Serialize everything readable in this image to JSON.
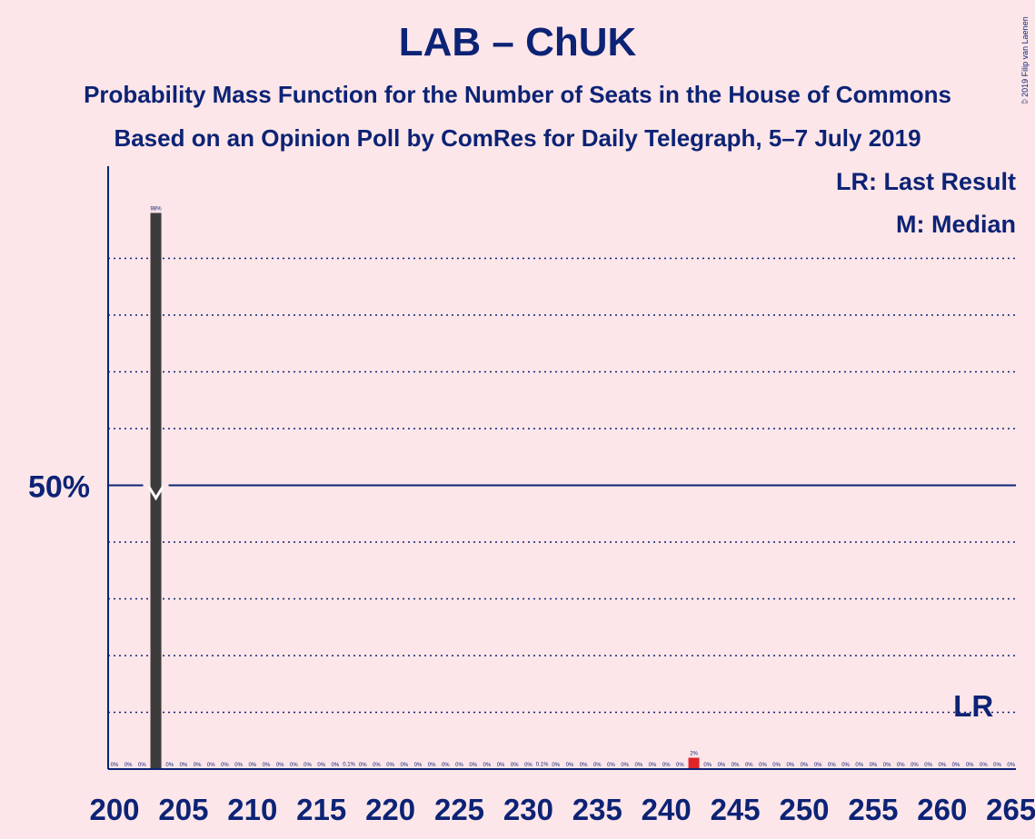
{
  "title": "LAB – ChUK",
  "subtitle_1": "Probability Mass Function for the Number of Seats in the House of Commons",
  "subtitle_2": "Based on an Opinion Poll by ComRes for Daily Telegraph, 5–7 July 2019",
  "legend": {
    "last_result": "LR: Last Result",
    "median": "M: Median"
  },
  "copyright": "© 2019 Filip van Laenen",
  "colors": {
    "background": "#fde6e9",
    "text": "#0c2375",
    "bar": "#3c3c3c",
    "last_result_bar": "#e0242a"
  },
  "chart_data": {
    "type": "bar",
    "xlim": [
      200,
      265
    ],
    "ylim": [
      0,
      100
    ],
    "x_ticks": [
      200,
      205,
      210,
      215,
      220,
      225,
      230,
      235,
      240,
      245,
      250,
      255,
      260,
      265
    ],
    "x_tick_labels": [
      "200",
      "205",
      "210",
      "215",
      "220",
      "225",
      "230",
      "235",
      "240",
      "245",
      "250",
      "255",
      "260",
      "265"
    ],
    "y_gridlines": [
      10,
      20,
      30,
      40,
      60,
      70,
      80,
      90
    ],
    "y_major": {
      "value": 50,
      "label": "50%"
    },
    "median": 203,
    "median_label": "M",
    "last_result": 262,
    "last_result_label": "LR",
    "bars": [
      {
        "seat": 200,
        "value": 0,
        "label": "0%"
      },
      {
        "seat": 201,
        "value": 0,
        "label": "0%"
      },
      {
        "seat": 202,
        "value": 0,
        "label": "0%"
      },
      {
        "seat": 203,
        "value": 98,
        "label": "98%"
      },
      {
        "seat": 204,
        "value": 0,
        "label": "0%"
      },
      {
        "seat": 205,
        "value": 0,
        "label": "0%"
      },
      {
        "seat": 206,
        "value": 0,
        "label": "0%"
      },
      {
        "seat": 207,
        "value": 0,
        "label": "0%"
      },
      {
        "seat": 208,
        "value": 0,
        "label": "0%"
      },
      {
        "seat": 209,
        "value": 0,
        "label": "0%"
      },
      {
        "seat": 210,
        "value": 0,
        "label": "0%"
      },
      {
        "seat": 211,
        "value": 0,
        "label": "0%"
      },
      {
        "seat": 212,
        "value": 0,
        "label": "0%"
      },
      {
        "seat": 213,
        "value": 0,
        "label": "0%"
      },
      {
        "seat": 214,
        "value": 0,
        "label": "0%"
      },
      {
        "seat": 215,
        "value": 0,
        "label": "0%"
      },
      {
        "seat": 216,
        "value": 0,
        "label": "0%"
      },
      {
        "seat": 217,
        "value": 0.1,
        "label": "0.1%"
      },
      {
        "seat": 218,
        "value": 0,
        "label": "0%"
      },
      {
        "seat": 219,
        "value": 0,
        "label": "0%"
      },
      {
        "seat": 220,
        "value": 0,
        "label": "0%"
      },
      {
        "seat": 221,
        "value": 0,
        "label": "0%"
      },
      {
        "seat": 222,
        "value": 0,
        "label": "0%"
      },
      {
        "seat": 223,
        "value": 0,
        "label": "0%"
      },
      {
        "seat": 224,
        "value": 0,
        "label": "0%"
      },
      {
        "seat": 225,
        "value": 0,
        "label": "0%"
      },
      {
        "seat": 226,
        "value": 0,
        "label": "0%"
      },
      {
        "seat": 227,
        "value": 0,
        "label": "0%"
      },
      {
        "seat": 228,
        "value": 0,
        "label": "0%"
      },
      {
        "seat": 229,
        "value": 0,
        "label": "0%"
      },
      {
        "seat": 230,
        "value": 0,
        "label": "0%"
      },
      {
        "seat": 231,
        "value": 0.1,
        "label": "0.1%"
      },
      {
        "seat": 232,
        "value": 0,
        "label": "0%"
      },
      {
        "seat": 233,
        "value": 0,
        "label": "0%"
      },
      {
        "seat": 234,
        "value": 0,
        "label": "0%"
      },
      {
        "seat": 235,
        "value": 0,
        "label": "0%"
      },
      {
        "seat": 236,
        "value": 0,
        "label": "0%"
      },
      {
        "seat": 237,
        "value": 0,
        "label": "0%"
      },
      {
        "seat": 238,
        "value": 0,
        "label": "0%"
      },
      {
        "seat": 239,
        "value": 0,
        "label": "0%"
      },
      {
        "seat": 240,
        "value": 0,
        "label": "0%"
      },
      {
        "seat": 241,
        "value": 0,
        "label": "0%"
      },
      {
        "seat": 242,
        "value": 2,
        "label": "2%"
      },
      {
        "seat": 243,
        "value": 0,
        "label": "0%"
      },
      {
        "seat": 244,
        "value": 0,
        "label": "0%"
      },
      {
        "seat": 245,
        "value": 0,
        "label": "0%"
      },
      {
        "seat": 246,
        "value": 0,
        "label": "0%"
      },
      {
        "seat": 247,
        "value": 0,
        "label": "0%"
      },
      {
        "seat": 248,
        "value": 0,
        "label": "0%"
      },
      {
        "seat": 249,
        "value": 0,
        "label": "0%"
      },
      {
        "seat": 250,
        "value": 0,
        "label": "0%"
      },
      {
        "seat": 251,
        "value": 0,
        "label": "0%"
      },
      {
        "seat": 252,
        "value": 0,
        "label": "0%"
      },
      {
        "seat": 253,
        "value": 0,
        "label": "0%"
      },
      {
        "seat": 254,
        "value": 0,
        "label": "0%"
      },
      {
        "seat": 255,
        "value": 0,
        "label": "0%"
      },
      {
        "seat": 256,
        "value": 0,
        "label": "0%"
      },
      {
        "seat": 257,
        "value": 0,
        "label": "0%"
      },
      {
        "seat": 258,
        "value": 0,
        "label": "0%"
      },
      {
        "seat": 259,
        "value": 0,
        "label": "0%"
      },
      {
        "seat": 260,
        "value": 0,
        "label": "0%"
      },
      {
        "seat": 261,
        "value": 0,
        "label": "0%"
      },
      {
        "seat": 262,
        "value": 0,
        "label": "0%"
      },
      {
        "seat": 263,
        "value": 0,
        "label": "0%"
      },
      {
        "seat": 264,
        "value": 0,
        "label": "0%"
      },
      {
        "seat": 265,
        "value": 0,
        "label": "0%"
      }
    ]
  }
}
